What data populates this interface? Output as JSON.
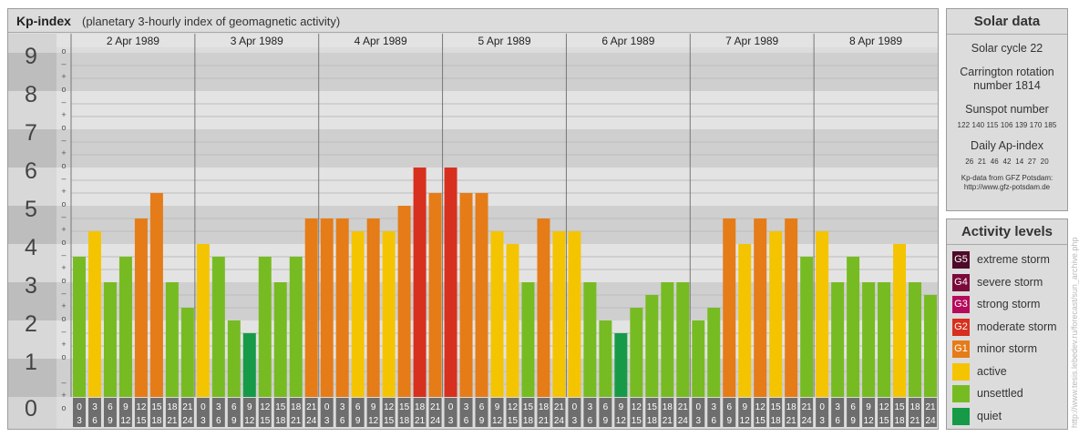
{
  "title": {
    "main": "Kp-index",
    "subtitle": "(planetary 3-hourly index of geomagnetic activity)"
  },
  "chart_data": {
    "type": "bar",
    "ylim": [
      0,
      9
    ],
    "y_ticks": [
      "0",
      "1",
      "2",
      "3",
      "4",
      "5",
      "6",
      "7",
      "8",
      "9"
    ],
    "sub_ticks": [
      "o",
      "+",
      "–"
    ],
    "days": [
      "2 Apr 1989",
      "3 Apr 1989",
      "4 Apr 1989",
      "5 Apr 1989",
      "6 Apr 1989",
      "7 Apr 1989",
      "8 Apr 1989"
    ],
    "hour_labels_top": [
      "0",
      "3",
      "6",
      "9",
      "12",
      "15",
      "18",
      "21"
    ],
    "hour_labels_bottom": [
      "3",
      "6",
      "9",
      "12",
      "15",
      "18",
      "21",
      "24"
    ],
    "values": [
      3.667,
      4.333,
      3.0,
      3.667,
      4.667,
      5.333,
      3.0,
      2.333,
      4.0,
      3.667,
      2.0,
      1.667,
      3.667,
      3.0,
      3.667,
      4.667,
      4.667,
      4.667,
      4.333,
      4.667,
      4.333,
      5.0,
      6.0,
      5.333,
      6.0,
      5.333,
      5.333,
      4.333,
      4.0,
      3.0,
      4.667,
      4.333,
      4.333,
      3.0,
      2.0,
      1.667,
      2.333,
      2.667,
      3.0,
      3.0,
      2.0,
      2.333,
      4.667,
      4.0,
      4.667,
      4.333,
      4.667,
      3.667,
      4.333,
      3.0,
      3.667,
      3.0,
      3.0,
      4.0,
      3.0,
      2.667
    ],
    "level_colors": {
      "unsettled": "#77bb22",
      "active": "#f5c400",
      "minor": "#e57c18",
      "moderate": "#d7301e",
      "strong": "#b50b5b",
      "severe": "#7a0a3a",
      "extreme": "#4e0a28",
      "quiet": "#169a48"
    }
  },
  "solar": {
    "heading": "Solar data",
    "cycle": "Solar cycle 22",
    "carrington_line1": "Carrington rotation",
    "carrington_line2": "number 1814",
    "sunspot_label": "Sunspot number",
    "sunspot_values": "122 140 115 106 139 170 185",
    "ap_label": "Daily Ap-index",
    "ap_values": "26  21  46  42  14  27  20",
    "credit_line1": "Kp-data from GFZ Potsdam:",
    "credit_line2": "http://www.gfz-potsdam.de"
  },
  "activity": {
    "heading": "Activity levels",
    "levels": [
      {
        "code": "G5",
        "label": "extreme storm",
        "color": "#4e0a28"
      },
      {
        "code": "G4",
        "label": "severe storm",
        "color": "#7a0a3a"
      },
      {
        "code": "G3",
        "label": "strong storm",
        "color": "#b50b5b"
      },
      {
        "code": "G2",
        "label": "moderate storm",
        "color": "#d7301e"
      },
      {
        "code": "G1",
        "label": "minor storm",
        "color": "#e57c18"
      },
      {
        "code": "",
        "label": "active",
        "color": "#f5c400"
      },
      {
        "code": "",
        "label": "unsettled",
        "color": "#77bb22"
      },
      {
        "code": "",
        "label": "quiet",
        "color": "#169a48"
      }
    ]
  },
  "watermark": "http://www.tesis.lebedev.ru/forecast/sun_archive.php"
}
